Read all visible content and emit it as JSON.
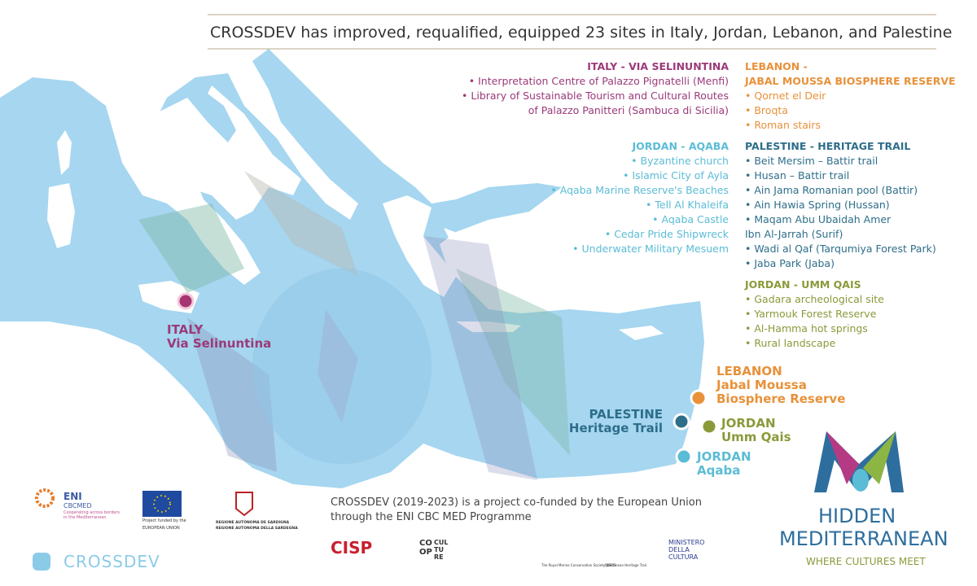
{
  "header": {
    "title": "CROSSDEV has improved, requalified, equipped 23 sites in Italy, Jordan, Lebanon,  and Palestine"
  },
  "sections": {
    "italy": {
      "heading": [
        "ITALY - VIA SELINUNTINA"
      ],
      "items": [
        [
          "Interpretation Centre of Palazzo Pignatelli (Menfi)"
        ],
        [
          "Library of Sustainable Tourism and Cultural Routes",
          "of Palazzo Panitteri (Sambuca di Sicilia)"
        ]
      ]
    },
    "jordan_aqaba": {
      "heading": [
        "JORDAN - AQABA"
      ],
      "items": [
        [
          "Byzantine church"
        ],
        [
          "Islamic City of Ayla"
        ],
        [
          "Aqaba Marine Reserve's Beaches"
        ],
        [
          "Tell Al Khaleifa"
        ],
        [
          "Aqaba Castle"
        ],
        [
          "Cedar Pride Shipwreck"
        ],
        [
          "Underwater Military Mesuem"
        ]
      ]
    },
    "lebanon": {
      "heading": [
        "LEBANON -",
        "JABAL MOUSSA BIOSPHERE RESERVE"
      ],
      "items": [
        [
          "Qornet el Deir"
        ],
        [
          "Broqta"
        ],
        [
          "Roman stairs"
        ]
      ]
    },
    "palestine": {
      "heading": [
        "PALESTINE - HERITAGE TRAIL"
      ],
      "items": [
        [
          "Beit Mersim – Battir trail"
        ],
        [
          "Husan – Battir trail"
        ],
        [
          "Ain Jama Romanian pool (Battir)"
        ],
        [
          "Ain Hawia Spring (Hussan)"
        ],
        [
          "Maqam Abu Ubaidah Amer",
          "Ibn Al-Jarrah (Surif)"
        ],
        [
          "Wadi al Qaf (Tarqumiya Forest Park)"
        ],
        [
          "Jaba Park (Jaba)"
        ]
      ]
    },
    "jordan_umm_qais": {
      "heading": [
        "JORDAN - UMM QAIS"
      ],
      "items": [
        [
          "Gadara archeological site"
        ],
        [
          "Yarmouk Forest Reserve"
        ],
        [
          "Al-Hamma hot springs"
        ],
        [
          "Rural landscape"
        ]
      ]
    }
  },
  "markers": {
    "italy": [
      "ITALY",
      "Via Selinuntina"
    ],
    "lebanon": [
      "LEBANON",
      "Jabal Moussa",
      "Biosphere Reserve"
    ],
    "palestine": [
      "PALESTINE",
      "Heritage Trail"
    ],
    "jordan_umm_qais": [
      "JORDAN",
      "Umm Qais"
    ],
    "jordan_aqaba": [
      "JORDAN",
      "Aqaba"
    ]
  },
  "footer": {
    "funding": [
      "CROSSDEV (2019-2023) is a project co-funded by the European Union",
      "through the ENI CBC MED Programme"
    ],
    "eni": [
      "ENI",
      "CBCMED",
      "Cooperating across borders",
      "in the Mediterranean"
    ],
    "eu": [
      "Project funded by the",
      "EUROPEAN UNION"
    ],
    "sardegna": [
      "REGIONE AUTÒNOMA DE SARDIGNA",
      "REGIONE AUTONOMA DELLA SARDEGNA"
    ],
    "partners": [
      "CISP",
      "CO OP",
      "CUL TU RE",
      "The Royal Marine Conservation Society JREDS",
      "Palestinean Heritage Trail",
      "MINISTERO",
      "DELLA",
      "CULTURA"
    ],
    "crossdev": "CROSSDEV",
    "brand": [
      "HIDDEN",
      "MEDITERRANEAN",
      "WHERE CULTURES MEET"
    ]
  }
}
